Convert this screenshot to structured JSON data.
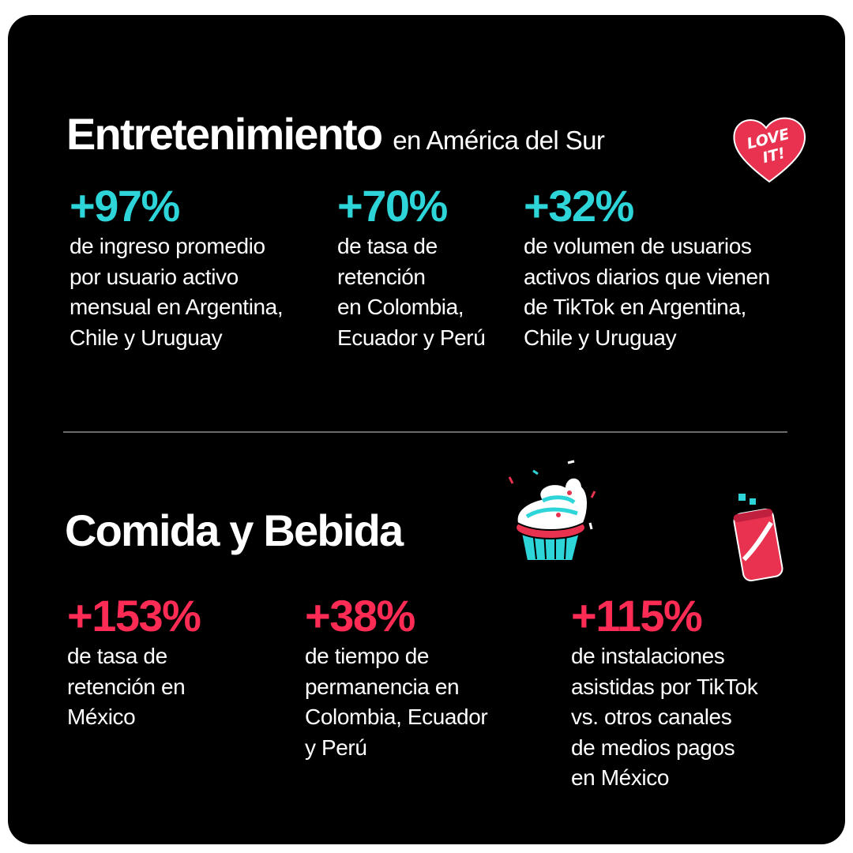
{
  "colors": {
    "background": "#000000",
    "text": "#ffffff",
    "cyan_accent": "#2dd4d8",
    "red_accent": "#fe2c55"
  },
  "sections": {
    "entertainment": {
      "title": "Entretenimiento",
      "subtitle": "en América del Sur",
      "sticker": "love-it-heart-sticker",
      "sticker_text_1": "LOVE",
      "sticker_text_2": "IT!",
      "stats": [
        {
          "value": "+97%",
          "description": "de ingreso promedio\npor usuario activo\nmensual en Argentina,\nChile y Uruguay"
        },
        {
          "value": "+70%",
          "description": "de tasa de\nretención\nen Colombia,\nEcuador y Perú"
        },
        {
          "value": "+32%",
          "description": "de volumen de usuarios\nactivos diarios que vienen\nde TikTok en Argentina,\nChile y Uruguay"
        }
      ]
    },
    "food": {
      "title": "Comida y Bebida",
      "stickers": [
        "cupcake-sticker",
        "soda-can-sticker"
      ],
      "stats": [
        {
          "value": "+153%",
          "description": "de tasa de\nretención en\nMéxico"
        },
        {
          "value": "+38%",
          "description": "de tiempo de\npermanencia en\nColombia, Ecuador\ny Perú"
        },
        {
          "value": "+115%",
          "description": "de instalaciones\nasistidas por TikTok\nvs. otros canales\nde medios pagos\nen México"
        }
      ]
    }
  }
}
